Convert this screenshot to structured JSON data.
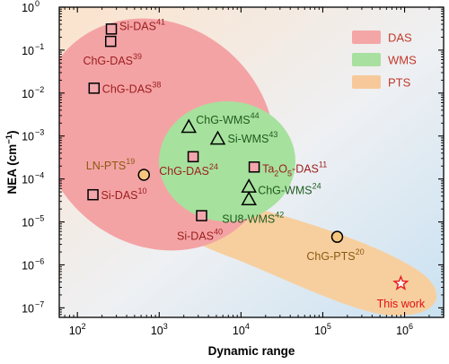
{
  "chart_data": {
    "type": "scatter",
    "title": "",
    "xlabel": "Dynamic range",
    "ylabel_parts": {
      "main": "NEA (cm",
      "sup": "−1",
      "close": ")"
    },
    "x_scale": "log",
    "y_scale": "log",
    "xlim": [
      60,
      3000000
    ],
    "ylim": [
      6e-08,
      1
    ],
    "grid": false,
    "x_ticks": [
      {
        "value": 100,
        "base": "10",
        "exp": "2"
      },
      {
        "value": 1000,
        "base": "10",
        "exp": "3"
      },
      {
        "value": 10000,
        "base": "10",
        "exp": "4"
      },
      {
        "value": 100000,
        "base": "10",
        "exp": "5"
      },
      {
        "value": 1000000,
        "base": "10",
        "exp": "6"
      }
    ],
    "y_ticks": [
      {
        "value": 1,
        "base": "10",
        "exp": "0"
      },
      {
        "value": 0.1,
        "base": "10",
        "exp": "−1"
      },
      {
        "value": 0.01,
        "base": "10",
        "exp": "−2"
      },
      {
        "value": 0.001,
        "base": "10",
        "exp": "−3"
      },
      {
        "value": 0.0001,
        "base": "10",
        "exp": "−4"
      },
      {
        "value": 1e-05,
        "base": "10",
        "exp": "−5"
      },
      {
        "value": 1e-06,
        "base": "10",
        "exp": "−6"
      },
      {
        "value": 1e-07,
        "base": "10",
        "exp": "−7"
      }
    ],
    "legend": {
      "placement": "top-right",
      "entries": [
        {
          "label": "DAS",
          "color": "#f4a6a6"
        },
        {
          "label": "WMS",
          "color": "#a8e0a0"
        },
        {
          "label": "PTS",
          "color": "#f7c99a"
        }
      ]
    },
    "regions": [
      {
        "name": "PTS",
        "color": "#f7cf9f"
      },
      {
        "name": "DAS",
        "color": "#f4a3a5"
      },
      {
        "name": "WMS",
        "color": "#a6e19d"
      }
    ],
    "points": [
      {
        "category": "DAS",
        "marker": "square",
        "x": 260,
        "y": 0.31,
        "label": "Si-DAS",
        "ref": "41",
        "label_color": "#9b1c1c"
      },
      {
        "category": "DAS",
        "marker": "square",
        "x": 255,
        "y": 0.16,
        "label": "ChG-DAS",
        "ref": "39",
        "label_color": "#9b1c1c"
      },
      {
        "category": "DAS",
        "marker": "square",
        "x": 160,
        "y": 0.013,
        "label": "ChG-DAS",
        "ref": "38",
        "label_color": "#9b1c1c"
      },
      {
        "category": "DAS",
        "marker": "square",
        "x": 155,
        "y": 4.3e-05,
        "label": "Si-DAS",
        "ref": "10",
        "label_color": "#9b1c1c"
      },
      {
        "category": "DAS",
        "marker": "square",
        "x": 2600,
        "y": 0.00033,
        "label": "ChG-DAS",
        "ref": "24",
        "label_color": "#9b1c1c"
      },
      {
        "category": "DAS",
        "marker": "square",
        "x": 3300,
        "y": 1.4e-05,
        "label": "Si-DAS",
        "ref": "40",
        "label_color": "#9b1c1c"
      },
      {
        "category": "DAS",
        "marker": "square",
        "x": 14500,
        "y": 0.00019,
        "label_parts": [
          "Ta",
          "2",
          "O",
          "5",
          "-DAS"
        ],
        "ref": "11",
        "label_color": "#9b1c1c"
      },
      {
        "category": "WMS",
        "marker": "triangle",
        "x": 2300,
        "y": 0.0016,
        "label": "ChG-WMS",
        "ref": "44",
        "label_color": "#1e5c1e"
      },
      {
        "category": "WMS",
        "marker": "triangle",
        "x": 5200,
        "y": 0.00085,
        "label": "Si-WMS",
        "ref": "43",
        "label_color": "#1e5c1e"
      },
      {
        "category": "WMS",
        "marker": "triangle",
        "x": 12500,
        "y": 6.5e-05,
        "label": "ChG-WMS",
        "ref": "24",
        "label_color": "#1e5c1e"
      },
      {
        "category": "WMS",
        "marker": "triangle",
        "x": 12500,
        "y": 3.3e-05,
        "label": "SU8-WMS",
        "ref": "42",
        "label_color": "#1e5c1e"
      },
      {
        "category": "PTS",
        "marker": "circle",
        "x": 650,
        "y": 0.000125,
        "label": "LN-PTS",
        "ref": "19",
        "label_color": "#8a5a10"
      },
      {
        "category": "PTS",
        "marker": "circle",
        "x": 150000,
        "y": 4.5e-06,
        "label": "ChG-PTS",
        "ref": "20",
        "label_color": "#8a5a10"
      },
      {
        "category": "this",
        "marker": "star",
        "x": 900000,
        "y": 3.7e-07,
        "label": "This work",
        "ref": "",
        "label_color": "#e01010",
        "marker_color": "#e82020"
      }
    ]
  }
}
